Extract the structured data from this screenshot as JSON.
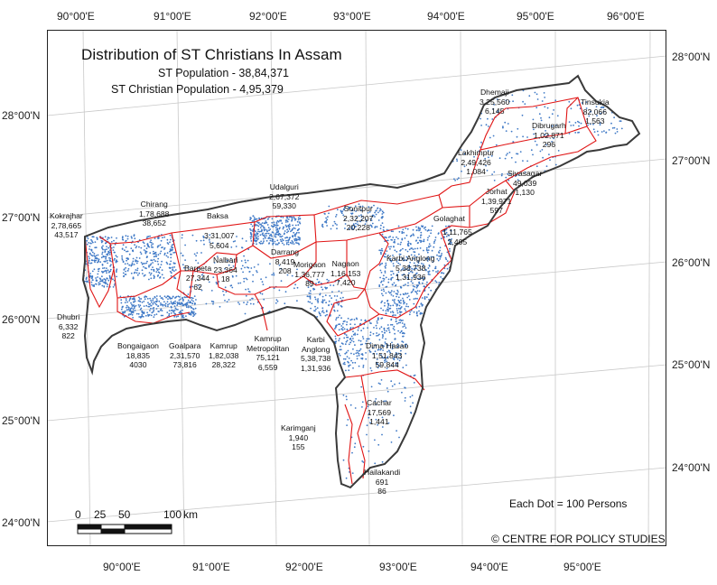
{
  "title": "Distribution of ST Christians In Assam",
  "subtitle_1": "ST Population - 38,84,371",
  "subtitle_2": "ST Christian Population - 4,95,379",
  "top_ticks": [
    "90°00'E",
    "91°00'E",
    "92°00'E",
    "93°00'E",
    "94°00'E",
    "95°00'E",
    "96°00'E"
  ],
  "bottom_ticks": [
    "90°00'E",
    "91°00'E",
    "92°00'E",
    "93°00'E",
    "94°00'E",
    "95°00'E"
  ],
  "left_ticks": [
    "28°00'N",
    "27°00'N",
    "26°00'N",
    "25°00'N",
    "24°00'N"
  ],
  "right_ticks": [
    "28°00'N",
    "27°00'N",
    "26°00'N",
    "25°00'N",
    "24°00'N"
  ],
  "scale": {
    "l0": "0",
    "l25": "25",
    "l50": "50",
    "l100": "100",
    "unit": "km"
  },
  "dot_note": "Each Dot = 100 Persons",
  "credit": "© CENTRE FOR POLICY STUDIES",
  "colors": {
    "outline": "#3a3a3a",
    "district_border": "#e01515",
    "dot": "#3f79c6",
    "graticule": "#c8c8c8"
  },
  "districts": [
    {
      "name": "Kokrajhar",
      "st": "2,78,665",
      "christian": "43,517"
    },
    {
      "name": "Chirang",
      "st": "1,78,688",
      "christian": "38,652"
    },
    {
      "name": "Baksa",
      "st": "3,31,007",
      "christian": "5,604"
    },
    {
      "name": "Udalguri",
      "st": "2,67,372",
      "christian": "59,330"
    },
    {
      "name": "Sonitpur",
      "st": "2,32,207",
      "christian": "20,228"
    },
    {
      "name": "Dhemaji",
      "st": "3,25,560",
      "christian": "6,145"
    },
    {
      "name": "Tinsukia",
      "st": "82,066",
      "christian": "1,563"
    },
    {
      "name": "Dibrugarh",
      "st": "1,02,871",
      "christian": "296"
    },
    {
      "name": "Lakhimpur",
      "st": "2,49,426",
      "christian": "1,084"
    },
    {
      "name": "Sivasagar",
      "st": "49,039",
      "christian": "1,130"
    },
    {
      "name": "Jorhat",
      "st": "1,39,971",
      "christian": "597"
    },
    {
      "name": "Golaghat",
      "st": "1,11,765",
      "christian": "2,405"
    },
    {
      "name": "Karbi Anglong",
      "st": "5,38,738",
      "christian": "1,31,936"
    },
    {
      "name": "Nalbari",
      "st": "23,364",
      "christian": "18"
    },
    {
      "name": "Darrang",
      "st": "8,419",
      "christian": "208"
    },
    {
      "name": "Barpeta",
      "st": "27,344",
      "christian": "62"
    },
    {
      "name": "Morigaon",
      "st": "1,36,777",
      "christian": "89"
    },
    {
      "name": "Nagaon",
      "st": "1,16,153",
      "christian": "7,420"
    },
    {
      "name": "Dhubri",
      "st": "6,332",
      "christian": "822"
    },
    {
      "name": "Bongaigaon",
      "st": "18,835",
      "christian": "4030"
    },
    {
      "name": "Goalpara",
      "st": "2,31,570",
      "christian": "73,816"
    },
    {
      "name": "Kamrup",
      "st": "1,82,038",
      "christian": "28,322"
    },
    {
      "name": "Kamrup\nMetropolitan",
      "st": "75,121",
      "christian": "6,559"
    },
    {
      "name": "Karbi\nAnglong",
      "st": "5,38,738",
      "christian": "1,31,936"
    },
    {
      "name": "Dima Hasao",
      "st": "1,51,843",
      "christian": "59,844"
    },
    {
      "name": "Cachar",
      "st": "17,569",
      "christian": "1,441"
    },
    {
      "name": "Karimganj",
      "st": "1,940",
      "christian": "155"
    },
    {
      "name": "Hailakandi",
      "st": "691",
      "christian": "86"
    }
  ]
}
